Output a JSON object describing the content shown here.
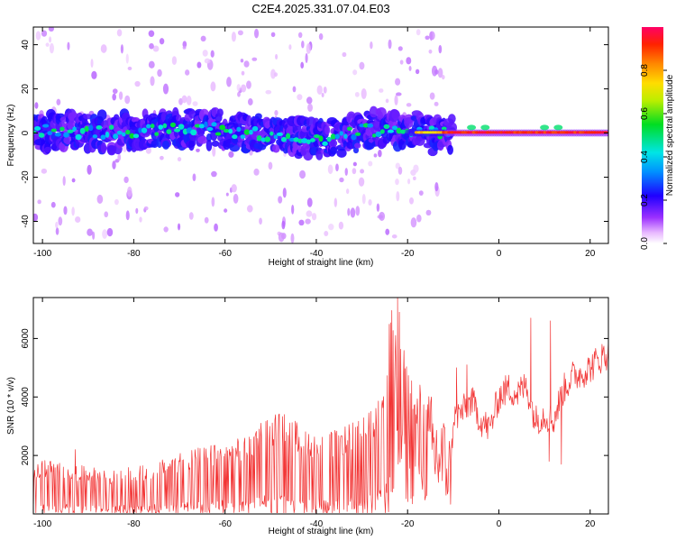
{
  "title": "C2E4.2025.331.07.04.E03",
  "chart_data": [
    {
      "type": "heatmap",
      "name": "spectrogram",
      "xlabel": "Height of straight line (km)",
      "ylabel": "Frequency (Hz)",
      "xlim": [
        -102,
        24
      ],
      "ylim": [
        -50,
        48
      ],
      "xticks": [
        -100,
        -80,
        -60,
        -40,
        -20,
        0,
        20
      ],
      "xtick_labels": [
        "-100",
        "-80",
        "-60",
        "-40",
        "-20",
        "0",
        "20"
      ],
      "yticks": [
        40,
        20,
        0,
        -20,
        -40
      ],
      "ytick_labels": [
        "40",
        "20",
        "0",
        "-20",
        "-40"
      ],
      "colorbar": {
        "label": "Normalized spectral amplitude",
        "range": [
          0,
          1
        ],
        "ticks": [
          0,
          0.2,
          0.4,
          0.6,
          0.8
        ],
        "tick_labels": [
          "0.0",
          "0.2",
          "0.4",
          "0.6",
          "0.8"
        ]
      },
      "band_centerline_hz": [
        {
          "x": -102,
          "f": 1
        },
        {
          "x": -90,
          "f": 0
        },
        {
          "x": -75,
          "f": 1
        },
        {
          "x": -65,
          "f": 2
        },
        {
          "x": -55,
          "f": 0
        },
        {
          "x": -45,
          "f": -2
        },
        {
          "x": -37,
          "f": -3
        },
        {
          "x": -30,
          "f": 1
        },
        {
          "x": -22,
          "f": 2
        },
        {
          "x": -18,
          "f": 1
        },
        {
          "x": -12,
          "f": 0
        },
        {
          "x": 0,
          "f": 0
        },
        {
          "x": 24,
          "f": 0
        }
      ],
      "band_halfwidth_hz": 6,
      "peak_amplitude": 1.0
    },
    {
      "type": "line",
      "name": "snr",
      "xlabel": "Height of straight line (km)",
      "ylabel": "SNR (10 * v/v)",
      "xlim": [
        -102,
        24
      ],
      "ylim": [
        0,
        7400
      ],
      "xticks": [
        -100,
        -80,
        -60,
        -40,
        -20,
        0,
        20
      ],
      "xtick_labels": [
        "-100",
        "-80",
        "-60",
        "-40",
        "-20",
        "0",
        "20"
      ],
      "yticks": [
        2000,
        4000,
        6000
      ],
      "ytick_labels": [
        "2000",
        "4000",
        "6000"
      ],
      "color": "#f23333",
      "series": [
        {
          "name": "SNR",
          "points": [
            {
              "x": -102,
              "y": 600
            },
            {
              "x": -100,
              "y": 700
            },
            {
              "x": -95,
              "y": 650
            },
            {
              "x": -90,
              "y": 600
            },
            {
              "x": -85,
              "y": 550
            },
            {
              "x": -80,
              "y": 600
            },
            {
              "x": -75,
              "y": 650
            },
            {
              "x": -70,
              "y": 800
            },
            {
              "x": -65,
              "y": 850
            },
            {
              "x": -60,
              "y": 900
            },
            {
              "x": -55,
              "y": 1000
            },
            {
              "x": -52,
              "y": 1200
            },
            {
              "x": -49,
              "y": 1300
            },
            {
              "x": -45,
              "y": 1200
            },
            {
              "x": -42,
              "y": 1100
            },
            {
              "x": -38,
              "y": 1000
            },
            {
              "x": -35,
              "y": 1100
            },
            {
              "x": -30,
              "y": 1200
            },
            {
              "x": -27,
              "y": 1400
            },
            {
              "x": -25,
              "y": 2000
            },
            {
              "x": -23,
              "y": 3200
            },
            {
              "x": -22,
              "y": 3300
            },
            {
              "x": -20,
              "y": 2800
            },
            {
              "x": -18,
              "y": 2500
            },
            {
              "x": -15,
              "y": 2200
            },
            {
              "x": -12,
              "y": 1800
            },
            {
              "x": -10.5,
              "y": 1400
            },
            {
              "x": -10,
              "y": 3300
            },
            {
              "x": -8,
              "y": 3500
            },
            {
              "x": -6,
              "y": 3900
            },
            {
              "x": -4,
              "y": 3200
            },
            {
              "x": -2,
              "y": 2900
            },
            {
              "x": 0,
              "y": 4000
            },
            {
              "x": 2,
              "y": 4300
            },
            {
              "x": 4,
              "y": 4100
            },
            {
              "x": 6,
              "y": 4400
            },
            {
              "x": 8,
              "y": 3200
            },
            {
              "x": 10,
              "y": 3400
            },
            {
              "x": 12,
              "y": 3200
            },
            {
              "x": 14,
              "y": 4200
            },
            {
              "x": 16,
              "y": 4700
            },
            {
              "x": 18,
              "y": 4800
            },
            {
              "x": 20,
              "y": 5000
            },
            {
              "x": 22,
              "y": 5300
            },
            {
              "x": 24,
              "y": 5500
            }
          ],
          "peaks": [
            {
              "x": -92.8,
              "y": 2200
            },
            {
              "x": -52.5,
              "y": 2900
            },
            {
              "x": -47,
              "y": 3400
            },
            {
              "x": -22.2,
              "y": 7400
            },
            {
              "x": -21.8,
              "y": 6900
            },
            {
              "x": -9.3,
              "y": 5000
            },
            {
              "x": -7,
              "y": 5100
            },
            {
              "x": 7,
              "y": 6700
            },
            {
              "x": 11.3,
              "y": 6600
            }
          ],
          "troughs": [
            {
              "x": 11,
              "y": 1800
            },
            {
              "x": 13.7,
              "y": 1700
            }
          ]
        }
      ]
    }
  ]
}
